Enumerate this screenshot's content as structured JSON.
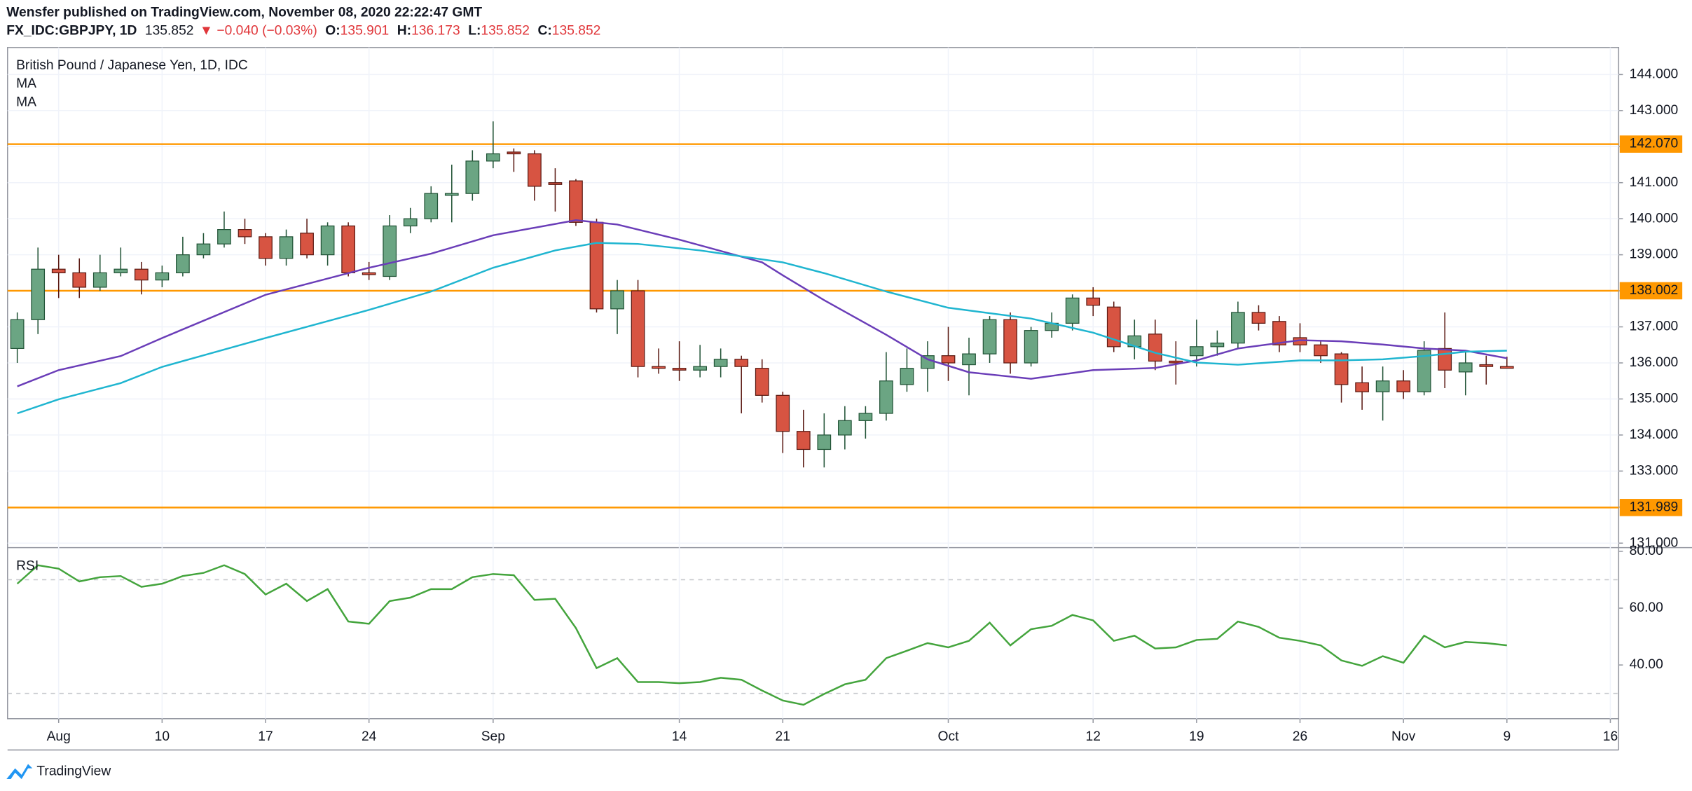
{
  "header": {
    "author": "Wensfer published on TradingView.com, November 08, 2020 22:22:47 GMT",
    "symbol": "FX_IDC:GBPJPY, 1D",
    "last": "135.852",
    "change": "▼ −0.040 (−0.03%)",
    "open_label": "O:",
    "open": "135.901",
    "high_label": "H:",
    "high": "136.173",
    "low_label": "L:",
    "low": "135.852",
    "close_label": "C:",
    "close": "135.852"
  },
  "footer": {
    "brand": "TradingView"
  },
  "chart_data": [
    {
      "type": "candlestick",
      "title": "British Pound / Japanese Yen, 1D, IDC",
      "up_color": "#6ba583",
      "up_border": "#225437",
      "down_color": "#d75442",
      "down_border": "#5b1a13",
      "open": [
        136.4,
        137.2,
        138.6,
        138.5,
        138.1,
        138.5,
        138.6,
        138.3,
        138.5,
        139.0,
        139.3,
        139.7,
        139.5,
        138.9,
        139.6,
        139.0,
        139.8,
        138.5,
        138.4,
        139.8,
        140.0,
        140.65,
        140.7,
        141.6,
        141.85,
        141.8,
        141.0,
        141.05,
        139.9,
        137.5,
        138.0,
        135.9,
        135.85,
        135.8,
        135.9,
        136.1,
        135.85,
        135.1,
        134.1,
        133.6,
        134.0,
        134.4,
        134.6,
        135.4,
        135.85,
        136.2,
        135.95,
        136.25,
        137.2,
        136.0,
        136.9,
        137.1,
        137.8,
        137.55,
        136.45,
        136.8,
        136.05,
        136.2,
        136.45,
        136.55,
        137.4,
        137.15,
        136.7,
        136.5,
        136.25,
        135.45,
        135.2,
        135.5,
        135.2,
        136.4,
        135.75,
        135.95,
        135.901
      ],
      "high": [
        137.4,
        139.2,
        139.0,
        138.9,
        139.0,
        139.2,
        138.8,
        138.7,
        139.5,
        139.6,
        140.2,
        140.0,
        139.6,
        139.7,
        140.0,
        139.9,
        139.9,
        138.8,
        140.1,
        140.3,
        140.9,
        141.5,
        141.9,
        142.7,
        141.95,
        141.9,
        141.4,
        141.1,
        140.0,
        138.3,
        138.3,
        136.4,
        136.6,
        136.5,
        136.4,
        136.2,
        136.1,
        135.2,
        134.7,
        134.6,
        134.8,
        134.8,
        136.3,
        136.4,
        136.6,
        137.0,
        136.7,
        137.3,
        137.4,
        137.0,
        137.4,
        137.9,
        138.1,
        137.7,
        137.2,
        137.2,
        136.6,
        137.2,
        136.9,
        137.7,
        137.6,
        137.3,
        137.1,
        136.6,
        136.3,
        135.9,
        135.9,
        135.8,
        136.6,
        137.4,
        136.3,
        136.2,
        136.173
      ],
      "low": [
        136.0,
        136.8,
        137.8,
        137.8,
        138.0,
        138.4,
        137.9,
        138.1,
        138.4,
        138.9,
        139.2,
        139.3,
        138.7,
        138.7,
        138.9,
        138.7,
        138.4,
        138.3,
        138.3,
        139.6,
        139.9,
        139.9,
        140.5,
        141.4,
        141.3,
        140.5,
        140.2,
        139.8,
        137.4,
        136.8,
        135.6,
        135.7,
        135.5,
        135.6,
        135.6,
        134.6,
        134.9,
        133.5,
        133.1,
        133.1,
        133.6,
        133.9,
        134.4,
        135.2,
        135.2,
        135.5,
        135.1,
        136.0,
        135.7,
        135.9,
        136.7,
        136.9,
        137.3,
        136.3,
        136.1,
        135.8,
        135.4,
        135.9,
        136.2,
        136.4,
        136.9,
        136.3,
        136.3,
        136.0,
        134.9,
        134.7,
        134.4,
        135.0,
        135.1,
        135.3,
        135.1,
        135.4,
        135.852
      ],
      "close": [
        137.2,
        138.6,
        138.5,
        138.1,
        138.5,
        138.6,
        138.3,
        138.5,
        139.0,
        139.3,
        139.7,
        139.5,
        138.9,
        139.5,
        139.0,
        139.8,
        138.5,
        138.45,
        139.8,
        140.0,
        140.7,
        140.7,
        141.6,
        141.8,
        141.8,
        140.9,
        140.95,
        139.9,
        137.5,
        138.0,
        135.9,
        135.85,
        135.8,
        135.9,
        136.1,
        135.9,
        135.1,
        134.1,
        133.6,
        134.0,
        134.4,
        134.6,
        135.5,
        135.85,
        136.2,
        136.0,
        136.25,
        137.2,
        136.0,
        136.9,
        137.1,
        137.8,
        137.6,
        136.45,
        136.75,
        136.05,
        136.0,
        136.45,
        136.55,
        137.4,
        137.1,
        136.5,
        136.5,
        136.2,
        135.4,
        135.2,
        135.5,
        135.2,
        136.35,
        135.8,
        136.0,
        135.9,
        135.852
      ],
      "series": [
        {
          "name": "MA",
          "color": "#6a3db8",
          "x": [
            0,
            2,
            5,
            7,
            12,
            17,
            20,
            23,
            27,
            29,
            32,
            36,
            37,
            39,
            42,
            44,
            46,
            49,
            52,
            55,
            57,
            59,
            62,
            64,
            66,
            68,
            70,
            72
          ],
          "values": [
            135.35,
            135.8,
            136.19,
            136.69,
            137.89,
            138.64,
            139.03,
            139.54,
            139.96,
            139.84,
            139.42,
            138.79,
            138.43,
            137.74,
            136.78,
            136.1,
            135.74,
            135.56,
            135.8,
            135.86,
            136.07,
            136.4,
            136.63,
            136.6,
            136.51,
            136.4,
            136.34,
            136.13
          ]
        },
        {
          "name": "MA",
          "color": "#1fb5d0",
          "x": [
            0,
            2,
            5,
            7,
            12,
            17,
            20,
            23,
            26,
            28,
            30,
            33,
            37,
            39,
            42,
            45,
            49,
            52,
            55,
            57,
            59,
            62,
            64,
            66,
            68,
            70,
            72
          ],
          "values": [
            134.6,
            134.99,
            135.44,
            135.89,
            136.69,
            137.47,
            137.98,
            138.64,
            139.12,
            139.33,
            139.3,
            139.12,
            138.79,
            138.49,
            137.98,
            137.53,
            137.23,
            136.84,
            136.28,
            136.01,
            135.95,
            136.07,
            136.07,
            136.1,
            136.19,
            136.31,
            136.34
          ]
        }
      ],
      "hlines": [
        {
          "value": 142.07,
          "label": "142.070"
        },
        {
          "value": 138.002,
          "label": "138.002"
        },
        {
          "value": 131.989,
          "label": "131.989"
        }
      ],
      "hline_color": "#ff9800",
      "xlim": [
        -0.47,
        77.4
      ],
      "xticks": [
        {
          "value": 2,
          "label": "Aug"
        },
        {
          "value": 7,
          "label": "10"
        },
        {
          "value": 12,
          "label": "17"
        },
        {
          "value": 17,
          "label": "24"
        },
        {
          "value": 23,
          "label": "Sep"
        },
        {
          "value": 32,
          "label": "14"
        },
        {
          "value": 37,
          "label": "21"
        },
        {
          "value": 45,
          "label": "Oct"
        },
        {
          "value": 52,
          "label": "12"
        },
        {
          "value": 57,
          "label": "19"
        },
        {
          "value": 62,
          "label": "26"
        },
        {
          "value": 67,
          "label": "Nov"
        },
        {
          "value": 72,
          "label": "9"
        },
        {
          "value": 77,
          "label": "16"
        }
      ],
      "ylim": [
        130.89,
        144.75
      ],
      "yticks": [
        {
          "value": 131,
          "label": "131.000"
        },
        {
          "value": 132,
          "label": "132.000"
        },
        {
          "value": 133,
          "label": "133.000"
        },
        {
          "value": 134,
          "label": "134.000"
        },
        {
          "value": 135,
          "label": "135.000"
        },
        {
          "value": 136,
          "label": "136.000"
        },
        {
          "value": 137,
          "label": "137.000"
        },
        {
          "value": 138,
          "label": "138.000"
        },
        {
          "value": 139,
          "label": "139.000"
        },
        {
          "value": 140,
          "label": "140.000"
        },
        {
          "value": 141,
          "label": "141.000"
        },
        {
          "value": 142,
          "label": "142.000"
        },
        {
          "value": 143,
          "label": "143.000"
        },
        {
          "value": 144,
          "label": "144.000"
        }
      ],
      "grid": true
    },
    {
      "type": "line",
      "title": "RSI",
      "color": "#43a43c",
      "values": [
        68.6,
        75.1,
        73.9,
        69.4,
        70.9,
        71.3,
        67.5,
        68.6,
        71.3,
        72.4,
        75.1,
        72.0,
        64.8,
        68.6,
        62.5,
        66.7,
        55.3,
        54.5,
        62.5,
        63.7,
        66.7,
        66.7,
        70.9,
        72.0,
        71.6,
        62.9,
        63.3,
        53.0,
        38.9,
        42.4,
        34.0,
        34.0,
        33.6,
        34.0,
        35.5,
        34.8,
        31.0,
        27.5,
        26.0,
        29.8,
        33.2,
        34.8,
        42.4,
        45.0,
        47.7,
        46.2,
        48.5,
        54.9,
        46.9,
        52.6,
        53.8,
        57.6,
        55.7,
        48.5,
        50.3,
        45.8,
        46.2,
        48.8,
        49.2,
        55.3,
        53.4,
        49.6,
        48.5,
        46.9,
        41.6,
        39.7,
        43.1,
        40.8,
        50.3,
        46.2,
        48.1,
        47.7,
        46.9
      ],
      "bands": [
        30,
        70
      ],
      "ylim": [
        21.1,
        81.1
      ],
      "yticks": [
        {
          "value": 40,
          "label": "40.00"
        },
        {
          "value": 60,
          "label": "60.00"
        },
        {
          "value": 80,
          "label": "80.00"
        }
      ]
    }
  ]
}
